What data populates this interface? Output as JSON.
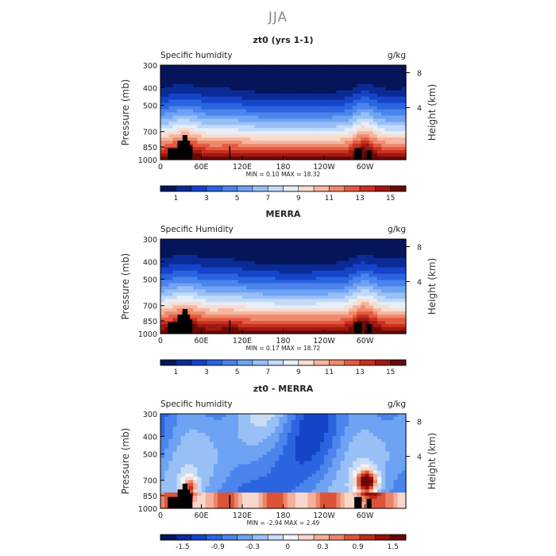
{
  "figure": {
    "title": "JJA"
  },
  "chart_data": [
    {
      "type": "heatmap",
      "title": "zt0 (yrs 1-1)",
      "left_label": "Specific humidity",
      "units": "g/kg",
      "ylabel": "Pressure (mb)",
      "ylabel_right": "Height (km)",
      "yticks": [
        "300",
        "400",
        "500",
        "700",
        "850",
        "1000"
      ],
      "right_ticks": [
        "8",
        "4"
      ],
      "xticks": [
        "0",
        "60E",
        "120E",
        "180",
        "120W",
        "60W"
      ],
      "stats": "MIN =    0.10   MAX =    18.32",
      "colorbar_ticks": [
        "1",
        "3",
        "5",
        "7",
        "9",
        "11",
        "13",
        "15"
      ],
      "palette": "humidity"
    },
    {
      "type": "heatmap",
      "title": "MERRA",
      "left_label": "Specific Humidity",
      "units": "g/kg",
      "ylabel": "Pressure (mb)",
      "ylabel_right": "Height (km)",
      "yticks": [
        "300",
        "400",
        "500",
        "700",
        "850",
        "1000"
      ],
      "right_ticks": [
        "8",
        "4"
      ],
      "xticks": [
        "0",
        "60E",
        "120E",
        "180",
        "120W",
        "60W"
      ],
      "stats": "MIN =    0.17   MAX =    18.72",
      "colorbar_ticks": [
        "1",
        "3",
        "5",
        "7",
        "9",
        "11",
        "13",
        "15"
      ],
      "palette": "humidity"
    },
    {
      "type": "heatmap",
      "title": "zt0 - MERRA",
      "left_label": "Specific humidity",
      "units": "g/kg",
      "ylabel": "Pressure (mb)",
      "ylabel_right": "Height (km)",
      "yticks": [
        "300",
        "400",
        "500",
        "700",
        "850",
        "1000"
      ],
      "right_ticks": [
        "8",
        "4"
      ],
      "xticks": [
        "0",
        "60E",
        "120E",
        "180",
        "120W",
        "60W"
      ],
      "stats": "MIN =   -2.94   MAX =    2.49",
      "colorbar_ticks": [
        "-1.5",
        "-0.9",
        "-0.3",
        "0",
        "0.3",
        "0.9",
        "1.5"
      ],
      "palette": "difference"
    }
  ],
  "colors": {
    "humidity": [
      "#06155a",
      "#0a2a95",
      "#1444c8",
      "#2a64e0",
      "#4a84ec",
      "#6ea2f2",
      "#98c0f6",
      "#c2daf8",
      "#e6eef8",
      "#f8dcd0",
      "#f6b6a0",
      "#f08a6c",
      "#e45a40",
      "#c83020",
      "#a01810",
      "#6a0a08"
    ],
    "difference": [
      "#06155a",
      "#0a2a95",
      "#1444c8",
      "#2a64e0",
      "#4a84ec",
      "#6ea2f2",
      "#98c0f6",
      "#c8dcf6",
      "#f4f4f4",
      "#f8d8cc",
      "#f4b09a",
      "#ec846a",
      "#dc5438",
      "#c02c18",
      "#980e08",
      "#6a0606"
    ]
  }
}
